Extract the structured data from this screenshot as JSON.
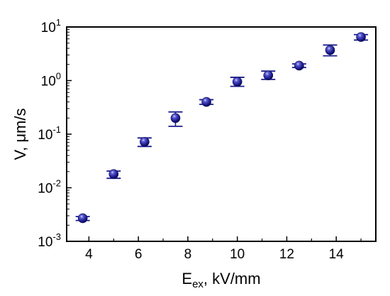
{
  "chart_data": {
    "type": "scatter",
    "title": "",
    "xlabel": {
      "main": "E",
      "sub": "ex",
      "rest": ", kV/mm"
    },
    "ylabel": "V, μm/s",
    "xlim": [
      3.1,
      15.6
    ],
    "xticks": [
      4,
      6,
      8,
      10,
      12,
      14
    ],
    "y_scale": "log",
    "ylim": [
      0.001,
      10
    ],
    "yticks": [
      {
        "value": 0.001,
        "base": "10",
        "exp": "-3"
      },
      {
        "value": 0.01,
        "base": "10",
        "exp": "-2"
      },
      {
        "value": 0.1,
        "base": "10",
        "exp": "-1"
      },
      {
        "value": 1,
        "base": "10",
        "exp": "0"
      },
      {
        "value": 10,
        "base": "10",
        "exp": "1"
      }
    ],
    "grid": false,
    "legend": "none",
    "marker_color": "#1c1c8e",
    "series": [
      {
        "points": [
          {
            "x": 3.75,
            "y": 0.0027,
            "err_low": 0.00245,
            "err_high": 0.0029
          },
          {
            "x": 5.0,
            "y": 0.018,
            "err_low": 0.015,
            "err_high": 0.0205
          },
          {
            "x": 6.25,
            "y": 0.072,
            "err_low": 0.059,
            "err_high": 0.085
          },
          {
            "x": 7.5,
            "y": 0.2,
            "err_low": 0.14,
            "err_high": 0.26
          },
          {
            "x": 8.75,
            "y": 0.4,
            "err_low": 0.36,
            "err_high": 0.44
          },
          {
            "x": 10.0,
            "y": 0.95,
            "err_low": 0.78,
            "err_high": 1.15
          },
          {
            "x": 11.25,
            "y": 1.25,
            "err_low": 1.05,
            "err_high": 1.5
          },
          {
            "x": 12.5,
            "y": 1.9,
            "err_low": 1.75,
            "err_high": 2.05
          },
          {
            "x": 13.75,
            "y": 3.7,
            "err_low": 2.9,
            "err_high": 4.6
          },
          {
            "x": 15.0,
            "y": 6.5,
            "err_low": 5.7,
            "err_high": 7.2
          }
        ]
      }
    ]
  }
}
